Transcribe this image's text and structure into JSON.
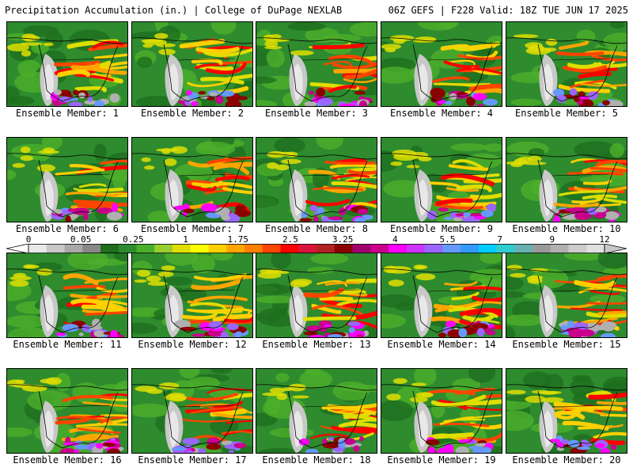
{
  "header": {
    "left_title": "Precipitation Accumulation (in.) | College of DuPage NEXLAB",
    "right_title": "06Z GEFS | F228 Valid: 18Z TUE JUN 17 2025"
  },
  "panels": [
    {
      "label": "Ensemble Member: 1"
    },
    {
      "label": "Ensemble Member: 2"
    },
    {
      "label": "Ensemble Member: 3"
    },
    {
      "label": "Ensemble Member: 4"
    },
    {
      "label": "Ensemble Member: 5"
    },
    {
      "label": "Ensemble Member: 6"
    },
    {
      "label": "Ensemble Member: 7"
    },
    {
      "label": "Ensemble Member: 8"
    },
    {
      "label": "Ensemble Member: 9"
    },
    {
      "label": "Ensemble Member: 10"
    },
    {
      "label": "Ensemble Member: 11"
    },
    {
      "label": "Ensemble Member: 12"
    },
    {
      "label": "Ensemble Member: 13"
    },
    {
      "label": "Ensemble Member: 14"
    },
    {
      "label": "Ensemble Member: 15"
    },
    {
      "label": "Ensemble Member: 16"
    },
    {
      "label": "Ensemble Member: 17"
    },
    {
      "label": "Ensemble Member: 18"
    },
    {
      "label": "Ensemble Member: 19"
    },
    {
      "label": "Ensemble Member: 20"
    }
  ],
  "colorbar": {
    "tick_labels": [
      "0",
      "0.05",
      "0.25",
      "1",
      "1.75",
      "2.5",
      "3.25",
      "4",
      "5.5",
      "7",
      "9",
      "12"
    ],
    "colors": [
      "#e8e8e8",
      "#c8c8c8",
      "#a8a8a8",
      "#888888",
      "#1e6e1e",
      "#2e8b2e",
      "#4caf2a",
      "#9acd32",
      "#dede00",
      "#ffff00",
      "#ffd000",
      "#ffa500",
      "#ff7f00",
      "#ff4500",
      "#ff0000",
      "#dc143c",
      "#b22222",
      "#8b0000",
      "#a0006e",
      "#c8008c",
      "#ff00ff",
      "#cc33ff",
      "#9966ff",
      "#6699ff",
      "#3399ff",
      "#00ccff",
      "#33cccc",
      "#66b2b2",
      "#999999",
      "#b0b0b0",
      "#cccccc",
      "#e0e0e0"
    ]
  }
}
